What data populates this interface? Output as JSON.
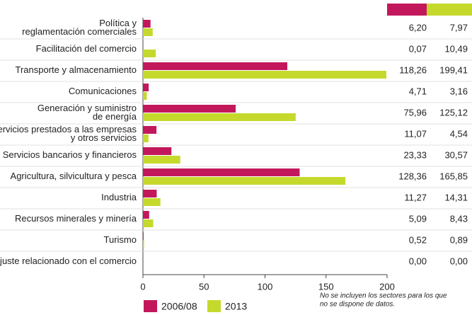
{
  "chart_data": {
    "type": "bar",
    "orientation": "horizontal",
    "categories": [
      "Política y\nreglamentación comerciales",
      "Facilitación del comercio",
      "Transporte y almacenamiento",
      "Comunicaciones",
      "Generación y suministro\nde energía",
      "Servicios prestados a las empresas\ny otros servicios",
      "Servicios bancarios y financieros",
      "Agricultura, silvicultura y pesca",
      "Industria",
      "Recursos minerales y minería",
      "Turismo",
      "Ajuste relacionado con el comercio"
    ],
    "series": [
      {
        "name": "2006/08",
        "color": "#c2185b",
        "values": [
          6.2,
          0.07,
          118.26,
          4.71,
          75.96,
          11.07,
          23.33,
          128.36,
          11.27,
          5.09,
          0.52,
          0.0
        ],
        "value_labels": [
          "6,20",
          "0,07",
          "118,26",
          "4,71",
          "75,96",
          "11,07",
          "23,33",
          "128,36",
          "11,27",
          "5,09",
          "0,52",
          "0,00"
        ]
      },
      {
        "name": "2013",
        "color": "#c5d92d",
        "values": [
          7.97,
          10.49,
          199.41,
          3.16,
          125.12,
          4.54,
          30.57,
          165.85,
          14.31,
          8.43,
          0.89,
          0.0
        ],
        "value_labels": [
          "7,97",
          "10,49",
          "199,41",
          "3,16",
          "125,12",
          "4,54",
          "30,57",
          "165,85",
          "14,31",
          "8,43",
          "0,89",
          "0,00"
        ]
      }
    ],
    "xlim": [
      0,
      200
    ],
    "xticks": [
      0,
      50,
      100,
      150,
      200
    ],
    "note": [
      "No se incluyen los sectores para los que",
      "no se dispone de datos."
    ]
  }
}
